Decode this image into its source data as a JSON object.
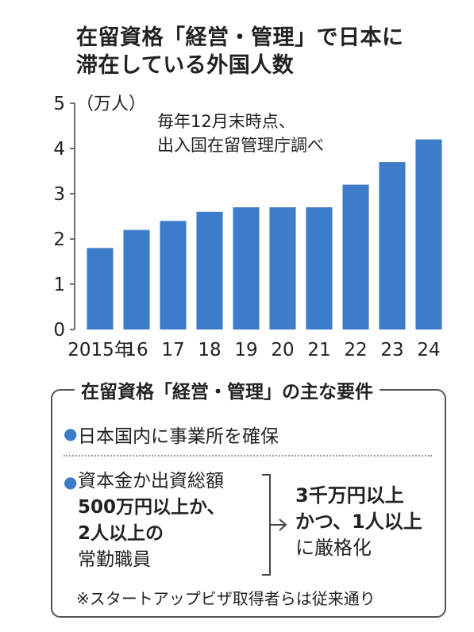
{
  "title_lines": [
    "在留資格「経営・管理」で日本に",
    "滞在している外国人数"
  ],
  "chart_data": {
    "type": "bar",
    "title": "在留資格「経営・管理」で日本に滞在している外国人数",
    "unit": "（万人）",
    "source": [
      "毎年12月末時点、",
      "出入国在留管理庁調べ"
    ],
    "categories": [
      "2015年",
      "16",
      "17",
      "18",
      "19",
      "20",
      "21",
      "22",
      "23",
      "24"
    ],
    "values": [
      1.8,
      2.2,
      2.4,
      2.6,
      2.7,
      2.7,
      2.7,
      3.2,
      3.7,
      4.2
    ],
    "ylim": [
      0,
      5
    ],
    "yticks": [
      "0",
      "1",
      "2",
      "3",
      "4",
      "5"
    ],
    "bar_color": "#3d7cc9",
    "grid": false
  },
  "requirements": {
    "title": "在留資格「経営・管理」の主な要件",
    "item1": "日本国内に事業所を確保",
    "item2_lines": [
      "資本金か出資総額",
      "500万円以上か、",
      "2人以上の",
      "常勤職員"
    ],
    "result_lines": [
      "3千万円以上",
      "かつ、1人以上",
      "に厳格化"
    ],
    "note": "※スタートアップビザ取得者らは従来通り",
    "bullet_color": "#3d7cc9"
  }
}
